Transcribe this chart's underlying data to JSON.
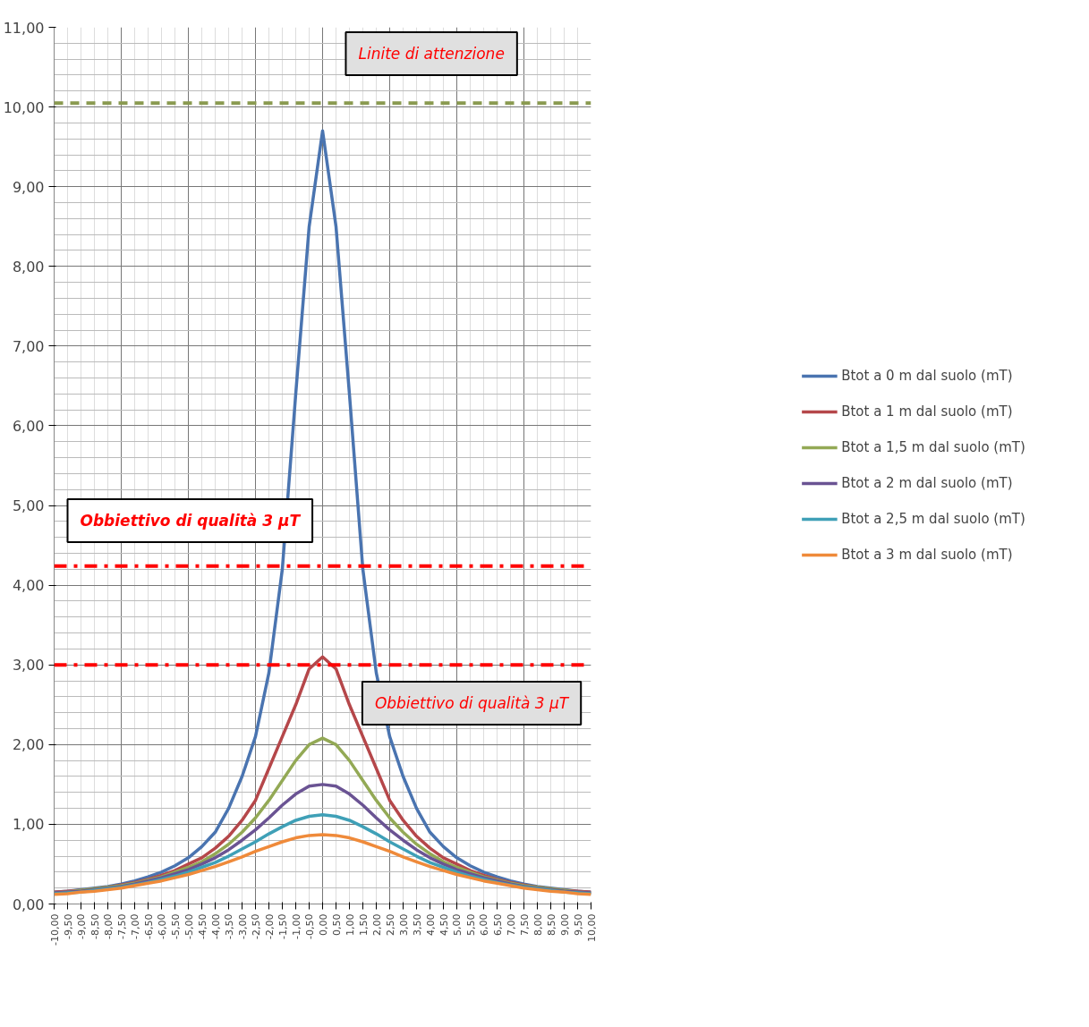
{
  "chart_data": {
    "type": "line",
    "categories": [
      "-10,00",
      "-9,50",
      "-9,00",
      "-8,50",
      "-8,00",
      "-7,50",
      "-7,00",
      "-6,50",
      "-6,00",
      "-5,50",
      "-5,00",
      "-4,50",
      "-4,00",
      "-3,50",
      "-3,00",
      "-2,50",
      "-2,00",
      "-1,50",
      "-1,00",
      "-0,50",
      "0,00",
      "0,50",
      "1,00",
      "1,50",
      "2,00",
      "2,50",
      "3,00",
      "3,50",
      "4,00",
      "4,50",
      "5,00",
      "5,50",
      "6,00",
      "6,50",
      "7,00",
      "7,50",
      "8,00",
      "8,50",
      "9,00",
      "9,50",
      "10,00"
    ],
    "series": [
      {
        "name": "Btot a 0 m dal suolo (mT)",
        "color": "#4a74b0",
        "values": [
          0.15,
          0.16,
          0.18,
          0.2,
          0.22,
          0.25,
          0.29,
          0.34,
          0.4,
          0.48,
          0.58,
          0.72,
          0.9,
          1.2,
          1.6,
          2.1,
          2.9,
          4.2,
          6.4,
          8.5,
          9.7,
          8.5,
          6.4,
          4.2,
          2.9,
          2.1,
          1.6,
          1.2,
          0.9,
          0.72,
          0.58,
          0.48,
          0.4,
          0.34,
          0.29,
          0.25,
          0.22,
          0.2,
          0.18,
          0.16,
          0.15
        ]
      },
      {
        "name": "Btot a 1 m dal suolo (mT)",
        "color": "#b5474a",
        "values": [
          0.15,
          0.16,
          0.17,
          0.19,
          0.21,
          0.24,
          0.27,
          0.31,
          0.36,
          0.42,
          0.5,
          0.58,
          0.7,
          0.85,
          1.05,
          1.3,
          1.7,
          2.1,
          2.5,
          2.95,
          3.1,
          2.95,
          2.5,
          2.1,
          1.7,
          1.3,
          1.05,
          0.85,
          0.7,
          0.58,
          0.5,
          0.42,
          0.36,
          0.31,
          0.27,
          0.24,
          0.21,
          0.19,
          0.17,
          0.16,
          0.15
        ]
      },
      {
        "name": "Btot a 1,5 m dal suolo (mT)",
        "color": "#93a955",
        "values": [
          0.14,
          0.15,
          0.17,
          0.19,
          0.21,
          0.23,
          0.26,
          0.3,
          0.34,
          0.4,
          0.46,
          0.53,
          0.63,
          0.75,
          0.9,
          1.08,
          1.3,
          1.55,
          1.8,
          2.0,
          2.08,
          2.0,
          1.8,
          1.55,
          1.3,
          1.08,
          0.9,
          0.75,
          0.63,
          0.53,
          0.46,
          0.4,
          0.34,
          0.3,
          0.26,
          0.23,
          0.21,
          0.19,
          0.17,
          0.15,
          0.14
        ]
      },
      {
        "name": "Btot a 2 m dal suolo (mT)",
        "color": "#6a5393",
        "values": [
          0.14,
          0.15,
          0.16,
          0.18,
          0.2,
          0.22,
          0.25,
          0.29,
          0.33,
          0.38,
          0.43,
          0.5,
          0.58,
          0.68,
          0.8,
          0.93,
          1.08,
          1.24,
          1.38,
          1.48,
          1.5,
          1.48,
          1.38,
          1.24,
          1.08,
          0.93,
          0.8,
          0.68,
          0.58,
          0.5,
          0.43,
          0.38,
          0.33,
          0.29,
          0.25,
          0.22,
          0.2,
          0.18,
          0.16,
          0.15,
          0.14
        ]
      },
      {
        "name": "Btot a 2,5 m dal suolo (mT)",
        "color": "#3fa0b7",
        "values": [
          0.13,
          0.14,
          0.15,
          0.17,
          0.19,
          0.21,
          0.24,
          0.27,
          0.31,
          0.35,
          0.4,
          0.46,
          0.52,
          0.6,
          0.69,
          0.78,
          0.88,
          0.97,
          1.05,
          1.1,
          1.12,
          1.1,
          1.05,
          0.97,
          0.88,
          0.78,
          0.69,
          0.6,
          0.52,
          0.46,
          0.4,
          0.35,
          0.31,
          0.27,
          0.24,
          0.21,
          0.19,
          0.17,
          0.15,
          0.14,
          0.13
        ]
      },
      {
        "name": "Btot a 3 m dal suolo (mT)",
        "color": "#ef8a3a",
        "values": [
          0.12,
          0.13,
          0.15,
          0.16,
          0.18,
          0.2,
          0.23,
          0.26,
          0.29,
          0.33,
          0.37,
          0.42,
          0.47,
          0.53,
          0.59,
          0.66,
          0.72,
          0.78,
          0.83,
          0.86,
          0.87,
          0.86,
          0.83,
          0.78,
          0.72,
          0.66,
          0.59,
          0.53,
          0.47,
          0.42,
          0.37,
          0.33,
          0.29,
          0.26,
          0.23,
          0.2,
          0.18,
          0.16,
          0.15,
          0.13,
          0.12
        ]
      }
    ],
    "ylim": [
      0,
      11
    ],
    "yticks": [
      {
        "value": 0,
        "label": "0,00"
      },
      {
        "value": 1,
        "label": "1,00"
      },
      {
        "value": 2,
        "label": "2,00"
      },
      {
        "value": 3,
        "label": "3,00"
      },
      {
        "value": 4,
        "label": "4,00"
      },
      {
        "value": 5,
        "label": "5,00"
      },
      {
        "value": 6,
        "label": "6,00"
      },
      {
        "value": 7,
        "label": "7,00"
      },
      {
        "value": 8,
        "label": "8,00"
      },
      {
        "value": 9,
        "label": "9,00"
      },
      {
        "value": 10,
        "label": "10,00"
      },
      {
        "value": 11,
        "label": "11,00"
      }
    ],
    "ref_lines": [
      {
        "axis": "y",
        "value": 10.05,
        "label": "Linite di attenzione",
        "color": "#8a9a50",
        "line_style": "dashed"
      },
      {
        "axis": "y",
        "value": 4.24,
        "label": "Obbiettivo di qualità 3 μT",
        "color": "#ff0000",
        "line_style": "dashdot"
      },
      {
        "axis": "y",
        "value": 3.0,
        "label": "Obbiettivo di qualità 3 μT",
        "color": "#ff0000",
        "line_style": "dashdot"
      }
    ],
    "grid": true,
    "legend": "right"
  }
}
